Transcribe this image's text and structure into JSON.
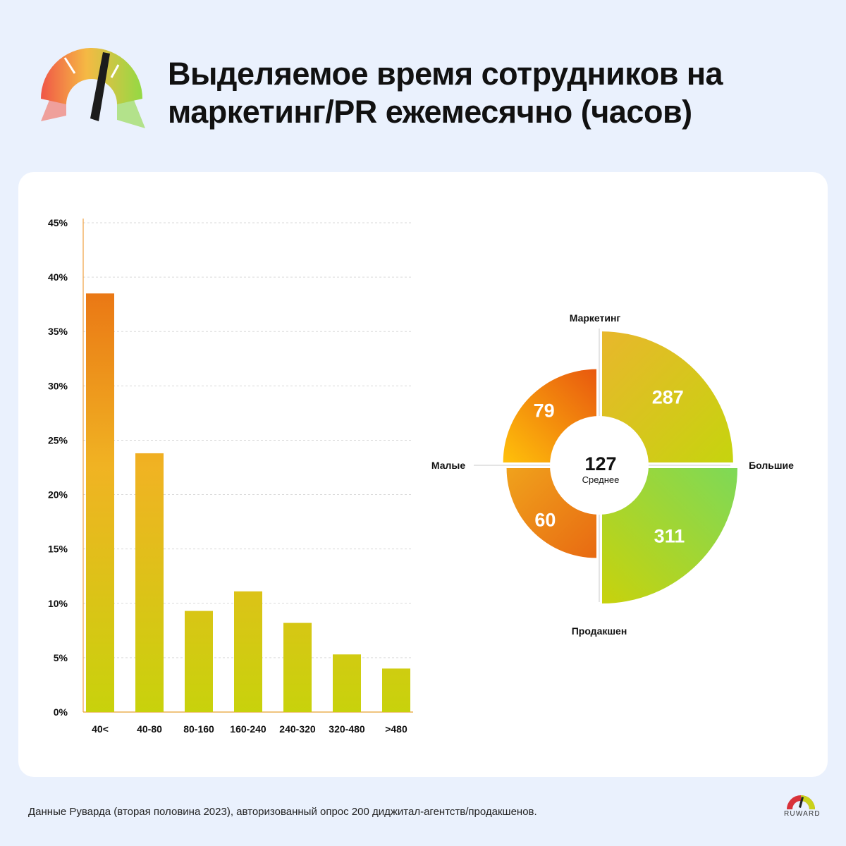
{
  "header": {
    "title_line1": "Выделяемое время сотрудников на",
    "title_line2": "маркетинг/PR ежемесячно (часов)"
  },
  "chart_data": [
    {
      "type": "bar",
      "categories": [
        "40<",
        "40-80",
        "80-160",
        "160-240",
        "240-320",
        "320-480",
        ">480"
      ],
      "values": [
        38.5,
        23.8,
        9.3,
        11.1,
        8.2,
        5.3,
        4.0
      ],
      "yticks": [
        "0%",
        "5%",
        "10%",
        "15%",
        "20%",
        "25%",
        "30%",
        "35%",
        "40%",
        "45%"
      ],
      "ylim": [
        0,
        45
      ],
      "grid": true,
      "colors": {
        "top": "#e8600f",
        "mid": "#f0b323",
        "bottom": "#c8d20c"
      }
    },
    {
      "type": "pie",
      "center_value": "127",
      "center_label": "Среднее",
      "axis_labels": {
        "top": "Маркетинг",
        "bottom": "Продакшен",
        "left": "Малые",
        "right": "Большие"
      },
      "segments": [
        {
          "position": "top-left",
          "value": 79
        },
        {
          "position": "top-right",
          "value": 287
        },
        {
          "position": "bottom-left",
          "value": 60
        },
        {
          "position": "bottom-right",
          "value": 311
        }
      ]
    }
  ],
  "footer": {
    "note": "Данные Руварда (вторая половина 2023), авторизованный опрос 200 диджитал-агентств/продакшенов.",
    "brand": "RUWARD"
  },
  "colors": {
    "background": "#eaf1fd",
    "card": "#ffffff"
  }
}
